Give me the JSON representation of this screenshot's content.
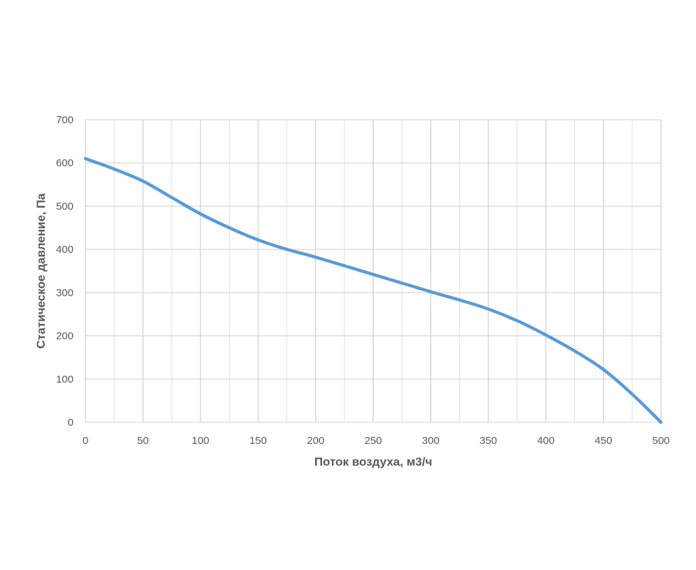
{
  "chart_data": {
    "type": "line",
    "xlabel": "Поток воздуха, м3/ч",
    "ylabel": "Статическое давление, Па",
    "xlim": [
      0,
      500
    ],
    "ylim": [
      0,
      700
    ],
    "x_ticks": [
      "0",
      "50",
      "100",
      "150",
      "200",
      "250",
      "300",
      "350",
      "400",
      "450",
      "500"
    ],
    "y_ticks": [
      "0",
      "100",
      "200",
      "300",
      "400",
      "500",
      "600",
      "700"
    ],
    "x_tick_values": [
      0,
      50,
      100,
      150,
      200,
      250,
      300,
      350,
      400,
      450,
      500
    ],
    "y_tick_values": [
      0,
      100,
      200,
      300,
      400,
      500,
      600,
      700
    ],
    "x_minor_grid": [
      25,
      75,
      125,
      175,
      225,
      275,
      325,
      375,
      425,
      475
    ],
    "grid": true,
    "legend": "none",
    "series": [
      {
        "color": "#5b9bd5",
        "x": [
          0,
          25,
          50,
          75,
          100,
          125,
          150,
          175,
          200,
          250,
          300,
          325,
          350,
          375,
          400,
          425,
          450,
          475,
          500
        ],
        "y": [
          610,
          586,
          558,
          520,
          482,
          450,
          422,
          400,
          382,
          342,
          302,
          283,
          262,
          235,
          202,
          165,
          122,
          65,
          0
        ]
      }
    ],
    "colors": {
      "line": "#5b9bd5",
      "grid": "#d9d9d9",
      "text": "#595959"
    }
  }
}
